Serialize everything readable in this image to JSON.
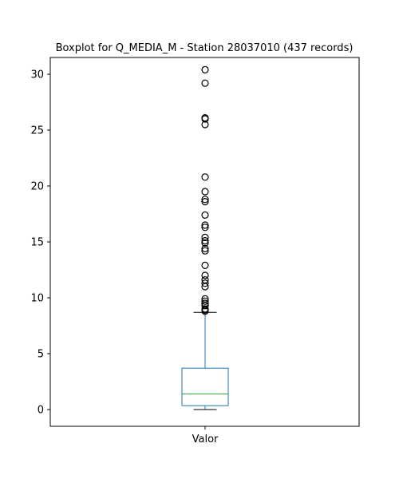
{
  "chart_data": {
    "type": "boxplot",
    "title": "Boxplot for Q_MEDIA_M - Station 28037010 (437 records)",
    "categories": [
      "Valor"
    ],
    "xlabel": "",
    "ylabel": "",
    "ylim": [
      -1.5,
      31.5
    ],
    "yticks": [
      0,
      5,
      10,
      15,
      20,
      25,
      30
    ],
    "grid": false,
    "box": {
      "whisker_low": 0.0,
      "q1": 0.35,
      "median": 1.4,
      "q3": 3.7,
      "whisker_high": 8.7
    },
    "outliers": [
      30.4,
      29.2,
      26.1,
      26.0,
      25.5,
      20.8,
      19.5,
      18.8,
      18.6,
      17.4,
      16.5,
      16.3,
      15.4,
      15.1,
      14.9,
      14.4,
      14.2,
      12.9,
      12.0,
      11.6,
      11.3,
      11.0,
      9.9,
      9.7,
      9.5,
      9.3,
      9.0,
      8.9,
      8.8
    ],
    "colors": {
      "box": "#1f77b4",
      "median": "#2ca02c",
      "whisker": "#000000",
      "outlier": "#000000"
    }
  }
}
